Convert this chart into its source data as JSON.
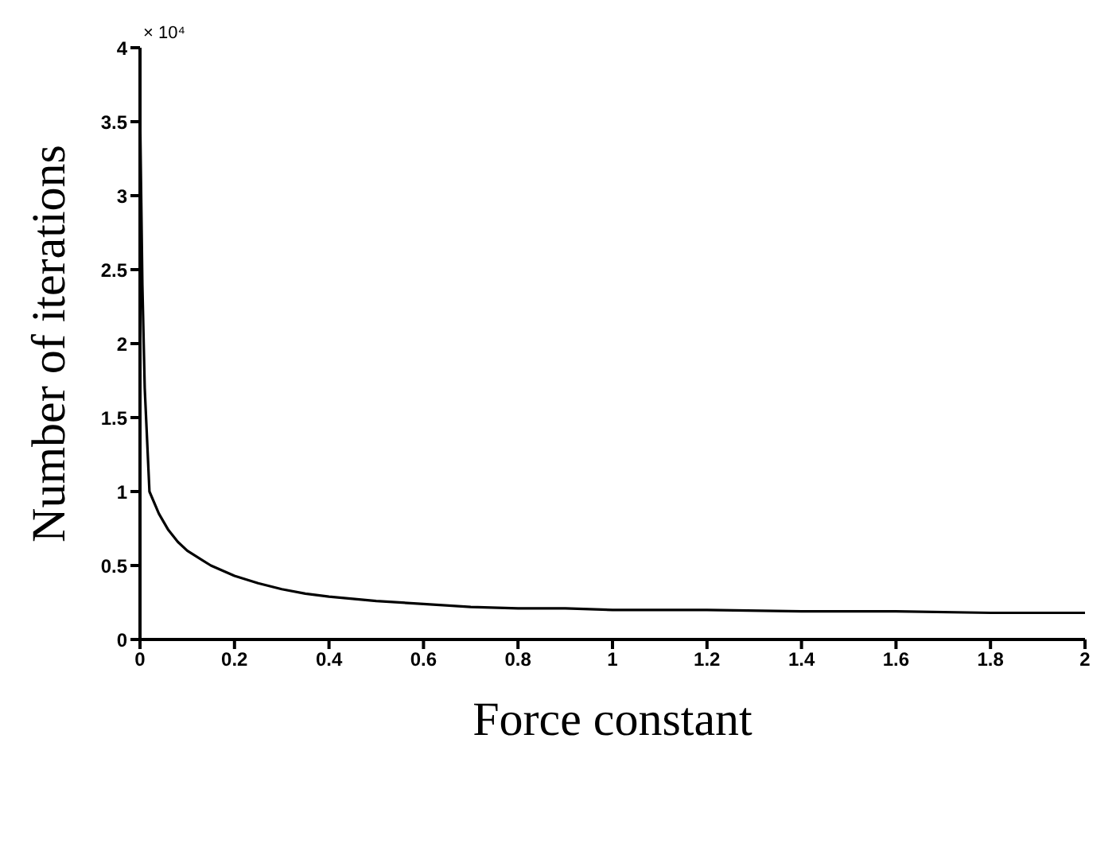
{
  "chart_data": {
    "type": "line",
    "xlabel": "Force constant",
    "ylabel": "Number of iterations",
    "annotations": [
      "× 10⁴"
    ],
    "x": [
      0,
      0.005,
      0.01,
      0.02,
      0.04,
      0.06,
      0.08,
      0.1,
      0.15,
      0.2,
      0.25,
      0.3,
      0.35,
      0.4,
      0.5,
      0.6,
      0.7,
      0.8,
      0.9,
      1.0,
      1.2,
      1.4,
      1.6,
      1.8,
      2.0
    ],
    "series": [
      {
        "color": "#000000",
        "values": [
          3.6,
          2.4,
          1.7,
          1.0,
          0.85,
          0.74,
          0.66,
          0.6,
          0.5,
          0.43,
          0.38,
          0.34,
          0.31,
          0.29,
          0.26,
          0.24,
          0.22,
          0.21,
          0.21,
          0.2,
          0.2,
          0.19,
          0.19,
          0.18,
          0.18
        ]
      }
    ],
    "xlim": [
      0,
      2
    ],
    "xticks": [
      0,
      0.2,
      0.4,
      0.6,
      0.8,
      1,
      1.2,
      1.4,
      1.6,
      1.8,
      2
    ],
    "ylim": [
      0,
      4
    ],
    "yticks": [
      0,
      0.5,
      1,
      1.5,
      2,
      2.5,
      3,
      3.5,
      4
    ],
    "marker": "none",
    "line_style": "solid"
  }
}
